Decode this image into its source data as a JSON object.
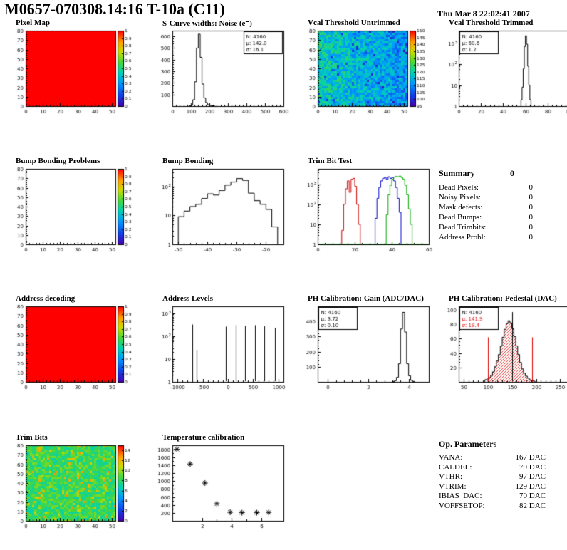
{
  "header": {
    "title": "M0657-070308.14:16 T-10a (C11)",
    "datetime": "Thu Mar  8 22:02:41 2007"
  },
  "summary": {
    "title": "Summary",
    "value": "0",
    "rows": [
      {
        "label": "Dead Pixels:",
        "value": "0"
      },
      {
        "label": "Noisy Pixels:",
        "value": "0"
      },
      {
        "label": "Mask defects:",
        "value": "0"
      },
      {
        "label": "Dead Bumps:",
        "value": "0"
      },
      {
        "label": "Dead Trimbits:",
        "value": "0"
      },
      {
        "label": "Address Probl:",
        "value": "0"
      }
    ]
  },
  "op_parameters": {
    "title": "Op. Parameters",
    "rows": [
      {
        "label": "VANA:",
        "value": "167 DAC"
      },
      {
        "label": "CALDEL:",
        "value": "79 DAC"
      },
      {
        "label": "VTHR:",
        "value": "97 DAC"
      },
      {
        "label": "VTRIM:",
        "value": "129 DAC"
      },
      {
        "label": "IBIAS_DAC:",
        "value": "70 DAC"
      },
      {
        "label": "VOFFSETOP:",
        "value": "82 DAC"
      }
    ]
  },
  "chart_data": [
    {
      "id": "pixel-map",
      "type": "heatmap",
      "title": "Pixel Map",
      "xlim": [
        0,
        52
      ],
      "ylim": [
        0,
        80
      ],
      "xticks": [
        0,
        10,
        20,
        30,
        40,
        50
      ],
      "yticks": [
        0,
        10,
        20,
        30,
        40,
        50,
        60,
        70,
        80
      ],
      "heat": {
        "mode": "uniform",
        "value": 1
      },
      "zlim": [
        0,
        1
      ],
      "colorbar_ticks": [
        0,
        0.1,
        0.2,
        0.3,
        0.4,
        0.5,
        0.6,
        0.7,
        0.8,
        0.9,
        1
      ]
    },
    {
      "id": "scurve-noise",
      "type": "hist",
      "title": "S-Curve widths: Noise (e⁻)",
      "xlim": [
        0,
        600
      ],
      "ylim": [
        0,
        650
      ],
      "xticks": [
        0,
        100,
        200,
        300,
        400,
        500,
        600
      ],
      "yticks": [
        100,
        200,
        300,
        400,
        500,
        600
      ],
      "bw": 10,
      "points": [
        [
          90,
          2
        ],
        [
          100,
          10
        ],
        [
          110,
          55
        ],
        [
          120,
          210
        ],
        [
          130,
          500
        ],
        [
          140,
          620
        ],
        [
          150,
          420
        ],
        [
          160,
          190
        ],
        [
          170,
          70
        ],
        [
          180,
          30
        ],
        [
          190,
          12
        ],
        [
          200,
          6
        ],
        [
          210,
          3
        ],
        [
          220,
          1
        ]
      ],
      "stats": {
        "pos": "tr",
        "lines": [
          {
            "t": "N: 4160",
            "c": "#000000"
          },
          {
            "t": "μ: 142.0",
            "c": "#000000"
          },
          {
            "t": "σ: 16.1",
            "c": "#000000"
          }
        ]
      }
    },
    {
      "id": "vcal-threshold-untrimmed",
      "type": "heatmap",
      "title": "Vcal Threshold Untrimmed",
      "xlim": [
        0,
        52
      ],
      "ylim": [
        0,
        80
      ],
      "xticks": [
        0,
        10,
        20,
        30,
        40,
        50
      ],
      "yticks": [
        0,
        10,
        20,
        30,
        40,
        50,
        60,
        70,
        80
      ],
      "heat": {
        "mode": "noise",
        "base": 0.3,
        "amp": 0.26,
        "xgrad": 0.14,
        "dark": 0.05
      },
      "zlim": [
        95,
        150
      ],
      "colorbar_ticks": [
        95,
        100,
        105,
        110,
        115,
        120,
        125,
        130,
        135,
        140,
        145,
        150
      ]
    },
    {
      "id": "vcal-threshold-trimmed",
      "type": "hist",
      "title": "Vcal Threshold Trimmed",
      "xlim": [
        0,
        100
      ],
      "ylog": true,
      "ylim": [
        1,
        4000
      ],
      "xticks": [
        0,
        20,
        40,
        60,
        80,
        100
      ],
      "bw": 1,
      "points": [
        [
          56,
          2
        ],
        [
          57,
          8
        ],
        [
          58,
          60
        ],
        [
          59,
          700
        ],
        [
          60,
          2300
        ],
        [
          61,
          900
        ],
        [
          62,
          80
        ],
        [
          63,
          10
        ],
        [
          64,
          2
        ]
      ],
      "stats": {
        "pos": "tl",
        "lines": [
          {
            "t": "N: 4160",
            "c": "#000000"
          },
          {
            "t": "μ: 60.6",
            "c": "#000000"
          },
          {
            "t": "σ: 1.2",
            "c": "#000000"
          }
        ]
      }
    },
    {
      "id": "bump-bonding-problems",
      "type": "heatmap",
      "title": "Bump Bonding Problems",
      "xlim": [
        0,
        52
      ],
      "ylim": [
        0,
        80
      ],
      "xticks": [
        0,
        10,
        20,
        30,
        40,
        50
      ],
      "yticks": [
        0,
        10,
        20,
        30,
        40,
        50,
        60,
        70,
        80
      ],
      "heat": {
        "mode": "empty"
      },
      "zlim": [
        0,
        1
      ],
      "colorbar_ticks": [
        0,
        0.1,
        0.2,
        0.3,
        0.4,
        0.5,
        0.6,
        0.7,
        0.8,
        0.9,
        1
      ]
    },
    {
      "id": "bump-bonding",
      "type": "hist",
      "title": "Bump Bonding",
      "xlim": [
        -52,
        -14
      ],
      "ylog": true,
      "ylim": [
        1,
        400
      ],
      "xticks": [
        -50,
        -40,
        -30,
        -20
      ],
      "bw": 2,
      "points": [
        [
          -50,
          9
        ],
        [
          -48,
          14
        ],
        [
          -46,
          20
        ],
        [
          -44,
          24
        ],
        [
          -42,
          38
        ],
        [
          -40,
          55
        ],
        [
          -38,
          50
        ],
        [
          -36,
          72
        ],
        [
          -34,
          110
        ],
        [
          -32,
          140
        ],
        [
          -30,
          185
        ],
        [
          -28,
          160
        ],
        [
          -26,
          58
        ],
        [
          -24,
          32
        ],
        [
          -22,
          24
        ],
        [
          -20,
          16
        ],
        [
          -18,
          4
        ]
      ]
    },
    {
      "id": "trim-bit-test",
      "type": "multihist",
      "title": "Trim Bit Test",
      "xlim": [
        0,
        60
      ],
      "ylog": true,
      "ylim": [
        1,
        6000
      ],
      "xticks": [
        0,
        20,
        40,
        60
      ],
      "bw": 1,
      "series": [
        {
          "name": "trim-red",
          "color": "#cc0000",
          "points": [
            [
              13,
              5
            ],
            [
              14,
              100
            ],
            [
              15,
              600
            ],
            [
              16,
              1500
            ],
            [
              17,
              400
            ],
            [
              18,
              1800
            ],
            [
              19,
              2000
            ],
            [
              20,
              800
            ],
            [
              21,
              100
            ],
            [
              22,
              10
            ]
          ]
        },
        {
          "name": "trim-blue",
          "color": "#0000cc",
          "points": [
            [
              31,
              20
            ],
            [
              32,
              200
            ],
            [
              33,
              700
            ],
            [
              34,
              1500
            ],
            [
              35,
              2000
            ],
            [
              36,
              2200
            ],
            [
              37,
              1800
            ],
            [
              38,
              2400
            ],
            [
              39,
              2000
            ],
            [
              40,
              2200
            ],
            [
              41,
              1500
            ],
            [
              42,
              700
            ],
            [
              43,
              200
            ],
            [
              44,
              40
            ]
          ]
        },
        {
          "name": "trim-green",
          "color": "#00aa00",
          "baseline": true,
          "points": [
            [
              37,
              30
            ],
            [
              38,
              300
            ],
            [
              39,
              900
            ],
            [
              40,
              1800
            ],
            [
              41,
              2300
            ],
            [
              42,
              2500
            ],
            [
              43,
              2400
            ],
            [
              44,
              2600
            ],
            [
              45,
              2200
            ],
            [
              46,
              1800
            ],
            [
              47,
              900
            ],
            [
              48,
              300
            ],
            [
              49,
              60
            ],
            [
              50,
              10
            ]
          ]
        }
      ]
    },
    {
      "id": "address-decoding",
      "type": "heatmap",
      "title": "Address decoding",
      "xlim": [
        0,
        52
      ],
      "ylim": [
        0,
        80
      ],
      "xticks": [
        0,
        10,
        20,
        30,
        40,
        50
      ],
      "yticks": [
        0,
        10,
        20,
        30,
        40,
        50,
        60,
        70,
        80
      ],
      "heat": {
        "mode": "uniform",
        "value": 1
      },
      "zlim": [
        0,
        1
      ],
      "colorbar_ticks": [
        0,
        0.1,
        0.2,
        0.3,
        0.4,
        0.5,
        0.6,
        0.7,
        0.8,
        0.9,
        1
      ]
    },
    {
      "id": "address-levels",
      "type": "spikes",
      "title": "Address Levels",
      "xlim": [
        -1100,
        1100
      ],
      "ylog": true,
      "ylim": [
        1,
        2000
      ],
      "xticks": [
        -1000,
        -500,
        0,
        500,
        1000
      ],
      "spikes": [
        [
          -700,
          320
        ],
        [
          -620,
          25
        ],
        [
          -40,
          260
        ],
        [
          150,
          300
        ],
        [
          340,
          280
        ],
        [
          530,
          300
        ],
        [
          720,
          270
        ],
        [
          930,
          230
        ]
      ]
    },
    {
      "id": "ph-calibration-gain",
      "type": "hist",
      "title": "PH Calibration: Gain (ADC/DAC)",
      "xlim": [
        -0.5,
        5
      ],
      "ylim": [
        0,
        500
      ],
      "xticks": [
        0,
        2,
        4
      ],
      "yticks": [
        100,
        200,
        300,
        400
      ],
      "bw": 0.1,
      "points": [
        [
          3.2,
          2
        ],
        [
          3.3,
          8
        ],
        [
          3.4,
          30
        ],
        [
          3.5,
          120
        ],
        [
          3.6,
          350
        ],
        [
          3.7,
          460
        ],
        [
          3.8,
          330
        ],
        [
          3.9,
          120
        ],
        [
          4.0,
          40
        ],
        [
          4.1,
          10
        ],
        [
          4.2,
          3
        ]
      ],
      "stats": {
        "pos": "tl",
        "lines": [
          {
            "t": "N: 4160",
            "c": "#000000"
          },
          {
            "t": "μ: 3.72",
            "c": "#000000"
          },
          {
            "t": "σ: 0.10",
            "c": "#000000"
          }
        ]
      }
    },
    {
      "id": "ph-calibration-pedestal",
      "type": "hist",
      "title": "PH Calibration: Pedestal (DAC)",
      "xlim": [
        40,
        270
      ],
      "ylim": [
        0,
        105
      ],
      "xticks": [
        50,
        100,
        150,
        200,
        250
      ],
      "yticks": [
        20,
        40,
        60,
        80,
        100
      ],
      "bw": 4,
      "fill": "hatch",
      "points": [
        [
          94,
          3
        ],
        [
          98,
          4
        ],
        [
          102,
          6
        ],
        [
          106,
          9
        ],
        [
          110,
          14
        ],
        [
          114,
          21
        ],
        [
          118,
          29
        ],
        [
          122,
          38
        ],
        [
          126,
          50
        ],
        [
          130,
          62
        ],
        [
          134,
          73
        ],
        [
          138,
          81
        ],
        [
          142,
          85
        ],
        [
          146,
          82
        ],
        [
          150,
          74
        ],
        [
          154,
          63
        ],
        [
          158,
          50
        ],
        [
          162,
          38
        ],
        [
          166,
          27
        ],
        [
          170,
          18
        ],
        [
          174,
          12
        ],
        [
          178,
          8
        ],
        [
          182,
          5
        ],
        [
          186,
          3
        ],
        [
          190,
          2
        ],
        [
          194,
          1
        ]
      ],
      "vlines": [
        {
          "x": 100,
          "y": 62,
          "c": "#dd0000"
        },
        {
          "x": 192,
          "y": 62,
          "c": "#dd0000"
        },
        {
          "x": 150,
          "y": 97,
          "c": "#000000"
        }
      ],
      "stats": {
        "pos": "tl",
        "lines": [
          {
            "t": "N: 4160",
            "c": "#000000"
          },
          {
            "t": "μ: 141.9",
            "c": "#dd0000"
          },
          {
            "t": "σ: 19.4",
            "c": "#dd0000"
          }
        ]
      }
    },
    {
      "id": "trim-bits",
      "type": "heatmap",
      "title": "Trim Bits",
      "xlim": [
        0,
        52
      ],
      "ylim": [
        0,
        80
      ],
      "xticks": [
        0,
        10,
        20,
        30,
        40,
        50
      ],
      "yticks": [
        0,
        10,
        20,
        30,
        40,
        50,
        60,
        70,
        80
      ],
      "heat": {
        "mode": "noise",
        "base": 0.55,
        "amp": 0.2,
        "hot": 0.07
      },
      "zlim": [
        0,
        15
      ],
      "colorbar_ticks": [
        0,
        2,
        4,
        6,
        8,
        10,
        12,
        14
      ]
    },
    {
      "id": "temperature-calibration",
      "type": "scatter",
      "title": "Temperature calibration",
      "xlim": [
        0,
        7.5
      ],
      "ylim": [
        0,
        1900
      ],
      "xticks": [
        2,
        4,
        6
      ],
      "xsub": 2,
      "ysub": 2,
      "yticks": [
        200,
        400,
        600,
        800,
        1000,
        1200,
        1400,
        1600,
        1800
      ],
      "points": [
        [
          0.3,
          1800
        ],
        [
          1.2,
          1430
        ],
        [
          2.2,
          950
        ],
        [
          3.0,
          430
        ],
        [
          3.9,
          215
        ],
        [
          4.7,
          205
        ],
        [
          5.7,
          205
        ],
        [
          6.5,
          210
        ]
      ]
    }
  ]
}
